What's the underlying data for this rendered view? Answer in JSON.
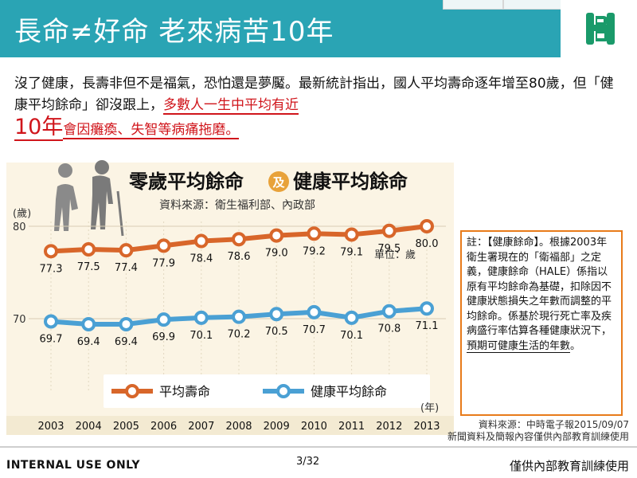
{
  "header": {
    "title": "長命≠好命 老來病苦10年",
    "bg_color": "#2aa4b4",
    "logo_icon": "fubon-logo-icon"
  },
  "intro": {
    "text1": "沒了健康，長壽非但不是福氣，恐怕還是夢魘。最新統計指出，國人平均壽命逐年增至80歲，但「健康平均餘命」卻沒跟上，",
    "highlight1": "多數人一生中平均有近",
    "highlight_big": "10年",
    "highlight2": "會因癱瘓、失智等病痛拖磨。"
  },
  "chart_data": {
    "type": "line",
    "title": "零歲平均餘命",
    "title_connector": "及",
    "title2": "健康平均餘命",
    "subtitle": "資料來源：衛生福利部、內政部",
    "ylabel": "(歲)",
    "unit_note": "單位：歲",
    "xlabel": "(年)",
    "ylim": [
      66,
      82
    ],
    "yticks": [
      70,
      80
    ],
    "categories": [
      "2003",
      "2004",
      "2005",
      "2006",
      "2007",
      "2008",
      "2009",
      "2010",
      "2011",
      "2012",
      "2013"
    ],
    "series": [
      {
        "name": "平均壽命",
        "color": "#d8662a",
        "values": [
          77.3,
          77.5,
          77.4,
          77.9,
          78.4,
          78.6,
          79.0,
          79.2,
          79.1,
          79.5,
          80.0
        ],
        "labels": [
          "77.3",
          "77.5",
          "77.4",
          "77.9",
          "78.4",
          "78.6",
          "79.0",
          "79.2",
          "79.1",
          "79.5",
          "80.0"
        ]
      },
      {
        "name": "健康平均餘命",
        "color": "#4aa0d4",
        "values": [
          69.7,
          69.4,
          69.4,
          69.9,
          70.1,
          70.2,
          70.5,
          70.7,
          70.1,
          70.8,
          71.1
        ],
        "labels": [
          "69.7",
          "69.4",
          "69.4",
          "69.9",
          "70.1",
          "70.2",
          "70.5",
          "70.7",
          "70.1",
          "70.8",
          "71.1"
        ]
      }
    ],
    "legend": "bottom",
    "grid": true,
    "bg_color": "#fbf4e4"
  },
  "note": {
    "text": "註：【健康餘命】。根據2003年衛生署現在的「衛福部」之定義，健康餘命（HALE）係指以原有平均餘命為基礎，扣除因不健康狀態損失之年數而調整的平均餘命。係基於現行死亡率及疾病盛行率估算各種健康狀況下，",
    "underlined": "預期可健康生活的年數",
    "end": "。"
  },
  "source": {
    "line1": "資料來源：中時電子報2015/09/07",
    "line2": "新聞資料及簡報內容僅供內部教育訓練使用"
  },
  "footer": {
    "left": "INTERNAL USE ONLY",
    "page": "3/32",
    "right": "僅供內部教育訓練使用"
  }
}
